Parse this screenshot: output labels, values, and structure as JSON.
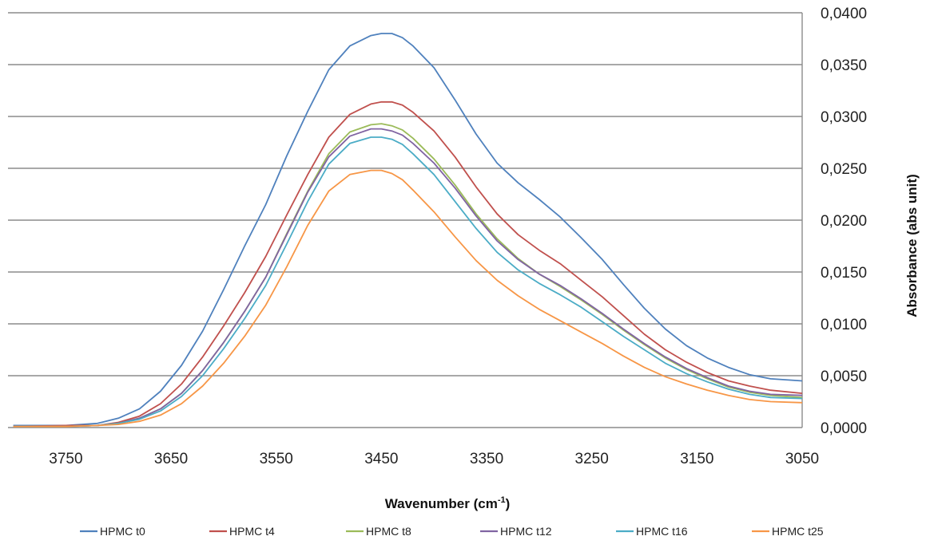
{
  "chart_data": {
    "type": "line",
    "title": "",
    "xlabel": {
      "prefix": "Wavenumber (cm",
      "sup": "-1",
      "suffix": ")"
    },
    "ylabel": "Absorbance (abs unit)",
    "xlim": [
      3805,
      3050
    ],
    "ylim": [
      0,
      0.04
    ],
    "x_reversed": true,
    "y_axis_side": "right",
    "grid": "horizontal",
    "legend_position": "bottom",
    "x_ticks": [
      3750,
      3650,
      3550,
      3450,
      3350,
      3250,
      3150,
      3050
    ],
    "x_tick_labels": [
      "3750",
      "3650",
      "3550",
      "3450",
      "3350",
      "3250",
      "3150",
      "3050"
    ],
    "y_ticks": [
      0,
      0.005,
      0.01,
      0.015,
      0.02,
      0.025,
      0.03,
      0.035,
      0.04
    ],
    "y_tick_labels": [
      "0,0000",
      "0,0050",
      "0,0100",
      "0,0150",
      "0,0200",
      "0,0250",
      "0,0300",
      "0,0350",
      "0,0400"
    ],
    "x": [
      3800,
      3750,
      3720,
      3700,
      3680,
      3660,
      3640,
      3620,
      3600,
      3580,
      3560,
      3540,
      3520,
      3500,
      3480,
      3460,
      3450,
      3440,
      3430,
      3420,
      3400,
      3380,
      3360,
      3340,
      3320,
      3300,
      3280,
      3260,
      3240,
      3220,
      3200,
      3180,
      3160,
      3140,
      3120,
      3100,
      3080,
      3050
    ],
    "series": [
      {
        "name": "HPMC t0",
        "color": "#4f81bd",
        "values": [
          0.0002,
          0.0002,
          0.0004,
          0.0009,
          0.0018,
          0.0035,
          0.006,
          0.0093,
          0.0133,
          0.0175,
          0.0215,
          0.0262,
          0.0305,
          0.0345,
          0.0368,
          0.0378,
          0.038,
          0.038,
          0.0376,
          0.0368,
          0.0347,
          0.0316,
          0.0283,
          0.0255,
          0.0236,
          0.022,
          0.0203,
          0.0183,
          0.0162,
          0.0138,
          0.0115,
          0.0095,
          0.0079,
          0.0067,
          0.0058,
          0.0051,
          0.0047,
          0.0045
        ]
      },
      {
        "name": "HPMC t4",
        "color": "#c0504d",
        "values": [
          0.0001,
          0.0002,
          0.0002,
          0.0005,
          0.0011,
          0.0023,
          0.0042,
          0.0068,
          0.0098,
          0.013,
          0.0165,
          0.0205,
          0.0244,
          0.028,
          0.0302,
          0.0312,
          0.0314,
          0.0314,
          0.0311,
          0.0304,
          0.0286,
          0.0261,
          0.0232,
          0.0206,
          0.0186,
          0.0171,
          0.0158,
          0.0142,
          0.0126,
          0.0108,
          0.009,
          0.0075,
          0.0063,
          0.0053,
          0.0045,
          0.004,
          0.0036,
          0.0033
        ]
      },
      {
        "name": "HPMC t8",
        "color": "#9bbb59",
        "values": [
          0.0001,
          0.0001,
          0.0002,
          0.0004,
          0.0009,
          0.0018,
          0.0033,
          0.0055,
          0.0082,
          0.0112,
          0.0145,
          0.0187,
          0.0228,
          0.0264,
          0.0285,
          0.0292,
          0.0293,
          0.0291,
          0.0287,
          0.0279,
          0.0259,
          0.0234,
          0.0206,
          0.0182,
          0.0163,
          0.0148,
          0.0136,
          0.0123,
          0.0109,
          0.0094,
          0.008,
          0.0067,
          0.0056,
          0.0047,
          0.0039,
          0.0034,
          0.0031,
          0.0029
        ]
      },
      {
        "name": "HPMC t12",
        "color": "#8064a2",
        "values": [
          0.0001,
          0.0001,
          0.0002,
          0.0004,
          0.0009,
          0.0018,
          0.0033,
          0.0055,
          0.0082,
          0.0112,
          0.0145,
          0.0186,
          0.0227,
          0.0261,
          0.0281,
          0.0288,
          0.0288,
          0.0286,
          0.0282,
          0.0274,
          0.0255,
          0.0231,
          0.0204,
          0.018,
          0.0162,
          0.0148,
          0.0137,
          0.0124,
          0.011,
          0.0095,
          0.0081,
          0.0068,
          0.0057,
          0.0048,
          0.004,
          0.0035,
          0.0032,
          0.0031
        ]
      },
      {
        "name": "HPMC t16",
        "color": "#4bacc6",
        "values": [
          0.0001,
          0.0001,
          0.0002,
          0.0004,
          0.0008,
          0.0016,
          0.003,
          0.005,
          0.0076,
          0.0105,
          0.0137,
          0.0177,
          0.0218,
          0.0254,
          0.0274,
          0.028,
          0.028,
          0.0278,
          0.0273,
          0.0264,
          0.0244,
          0.0218,
          0.0192,
          0.0169,
          0.0152,
          0.0139,
          0.0128,
          0.0116,
          0.0102,
          0.0088,
          0.0075,
          0.0062,
          0.0052,
          0.0044,
          0.0037,
          0.0032,
          0.0029,
          0.0028
        ]
      },
      {
        "name": "HPMC t25",
        "color": "#f79646",
        "values": [
          0.0001,
          0.0001,
          0.0002,
          0.0003,
          0.0006,
          0.0012,
          0.0023,
          0.004,
          0.0062,
          0.0088,
          0.0118,
          0.0155,
          0.0195,
          0.0228,
          0.0244,
          0.0248,
          0.0248,
          0.0245,
          0.0239,
          0.0229,
          0.0208,
          0.0184,
          0.0161,
          0.0142,
          0.0127,
          0.0114,
          0.0103,
          0.0092,
          0.0081,
          0.0069,
          0.0058,
          0.0049,
          0.0042,
          0.0036,
          0.0031,
          0.0027,
          0.0025,
          0.0024
        ]
      }
    ]
  }
}
